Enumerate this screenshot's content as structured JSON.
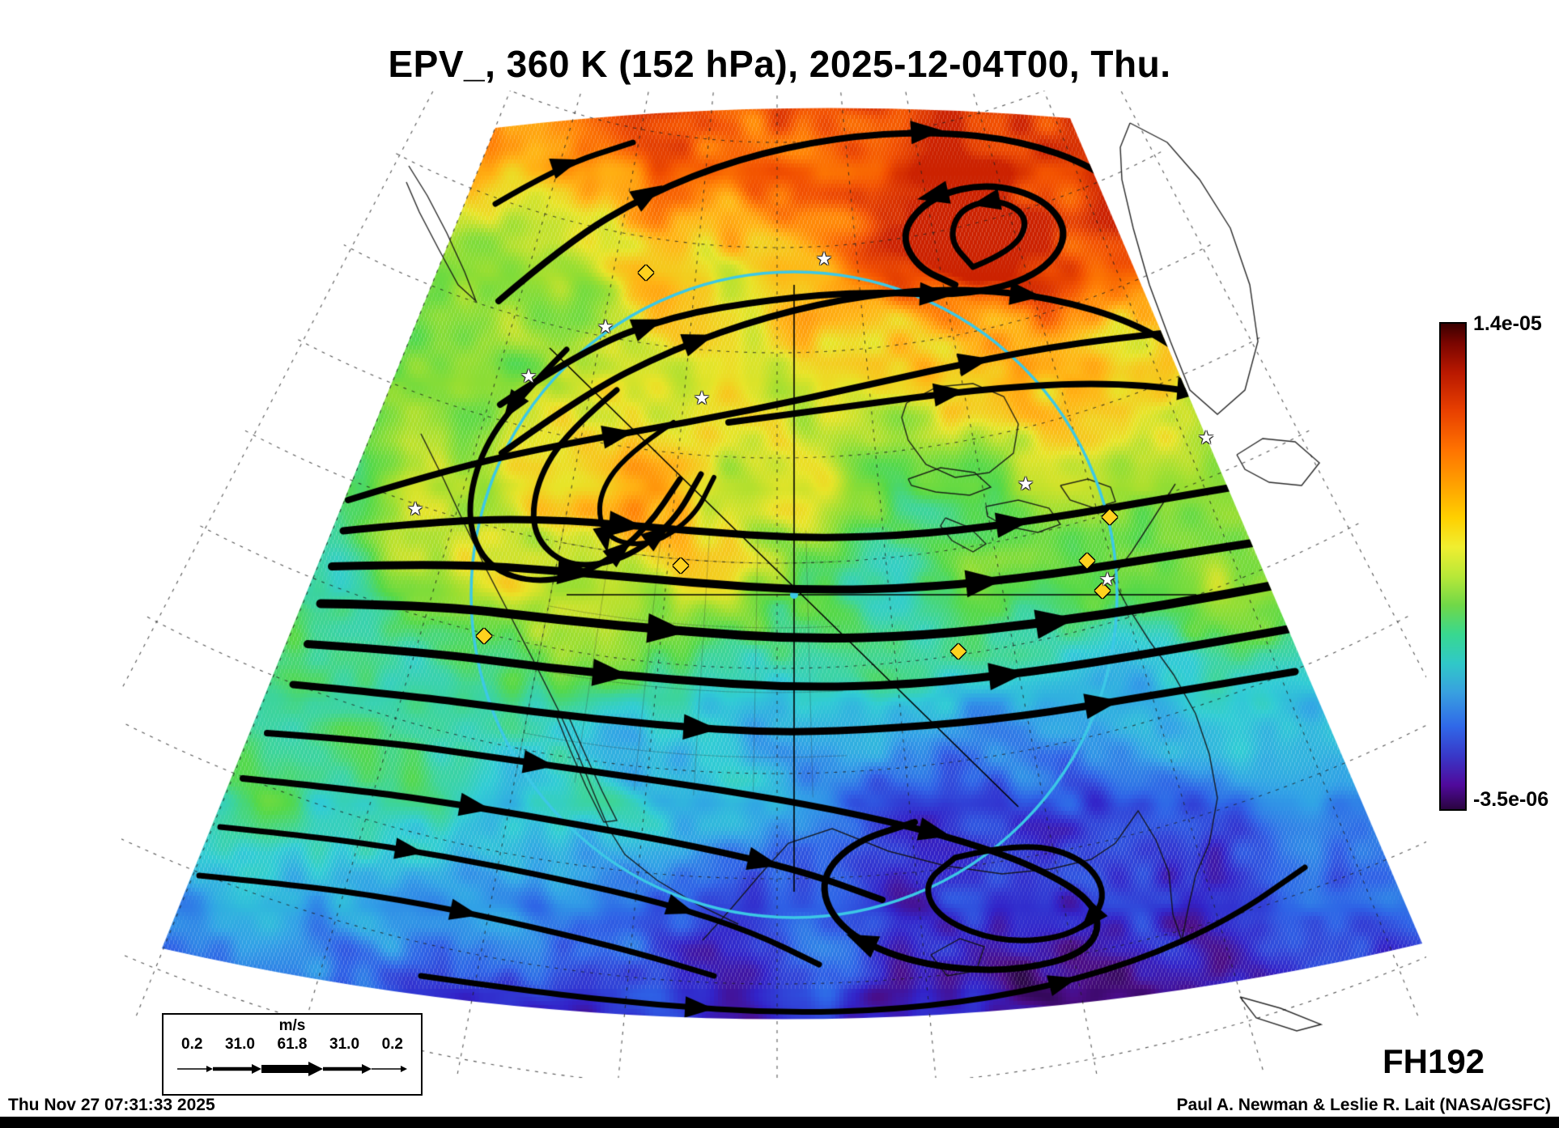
{
  "header": {
    "title": "EPV_, 360 K (152 hPa), 2025-12-04T00, Thu."
  },
  "colorbar": {
    "max": "1.4e-05",
    "min": "-3.5e-06"
  },
  "wind_legend": {
    "units": "m/s",
    "values": [
      "0.2",
      "31.0",
      "61.8",
      "31.0",
      "0.2"
    ]
  },
  "footer": {
    "forecast_hour": "FH192",
    "timestamp": "Thu Nov 27 07:31:33 2025",
    "attribution": "Paul A. Newman & Leslie R. Lait (NASA/GSFC)"
  },
  "icons": {
    "diamond_marker": "◆",
    "star_marker": "★"
  },
  "colors": {
    "analysis_circle": "#3cc8e6",
    "streamlines": "#000000",
    "diamond_marker": "#ffd21e",
    "star_marker": "#ffffff"
  },
  "chart_data": {
    "type": "heatmap",
    "title": "EPV_, 360 K (152 hPa), 2025-12-04T00, Thu.",
    "field": "EPV",
    "isentropic_level": "360 K",
    "pressure_level": "152 hPa",
    "valid_time": "2025-12-04T00, Thu.",
    "forecast_hour": "FH192",
    "colorbar_range": {
      "min": "-3.5e-06",
      "max": "1.4e-05"
    },
    "wind_speed_scale_ms": [
      0.2,
      31.0,
      61.8,
      31.0,
      0.2
    ],
    "legend_position": "colorbar right, wind scale bottom-left",
    "overlays": [
      "black wind streamlines with arrowheads",
      "cyan circle with vertical, horizontal and diagonal transect lines",
      "yellow diamond markers",
      "white star markers",
      "coastlines",
      "dashed latitude-longitude graticule"
    ]
  }
}
